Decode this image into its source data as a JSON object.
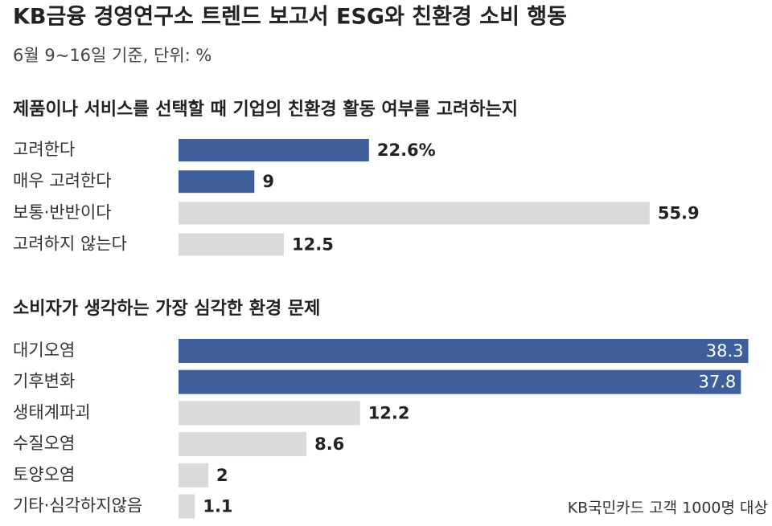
{
  "header": {
    "title": "KB금융 경영연구소 트렌드 보고서 ESG와 친환경 소비 행동",
    "subtitle": "6월 9~16일 기준, 단위: %"
  },
  "source": "KB국민카드 고객 1000명 대상",
  "chart_data": [
    {
      "type": "bar",
      "orientation": "horizontal",
      "title": "제품이나 서비스를 선택할 때 기업의 친환경 활동 여부를 고려하는지",
      "categories": [
        "고려한다",
        "매우 고려한다",
        "보통·반반이다",
        "고려하지 않는다"
      ],
      "values": [
        22.6,
        9,
        55.9,
        12.5
      ],
      "value_labels": [
        "22.6%",
        "9",
        "55.9",
        "12.5"
      ],
      "colors": [
        "#3f5f9b",
        "#3f5f9b",
        "#dadada",
        "#dadada"
      ]
    },
    {
      "type": "bar",
      "orientation": "horizontal",
      "title": "소비자가 생각하는 가장 심각한 환경 문제",
      "categories": [
        "대기오염",
        "기후변화",
        "생태계파괴",
        "수질오염",
        "토양오염",
        "기타·심각하지않음"
      ],
      "values": [
        38.3,
        37.8,
        12.2,
        8.6,
        2,
        1.1
      ],
      "colors": [
        "#3f5f9b",
        "#3f5f9b",
        "#dadada",
        "#dadada",
        "#dadada",
        "#dadada"
      ]
    }
  ]
}
